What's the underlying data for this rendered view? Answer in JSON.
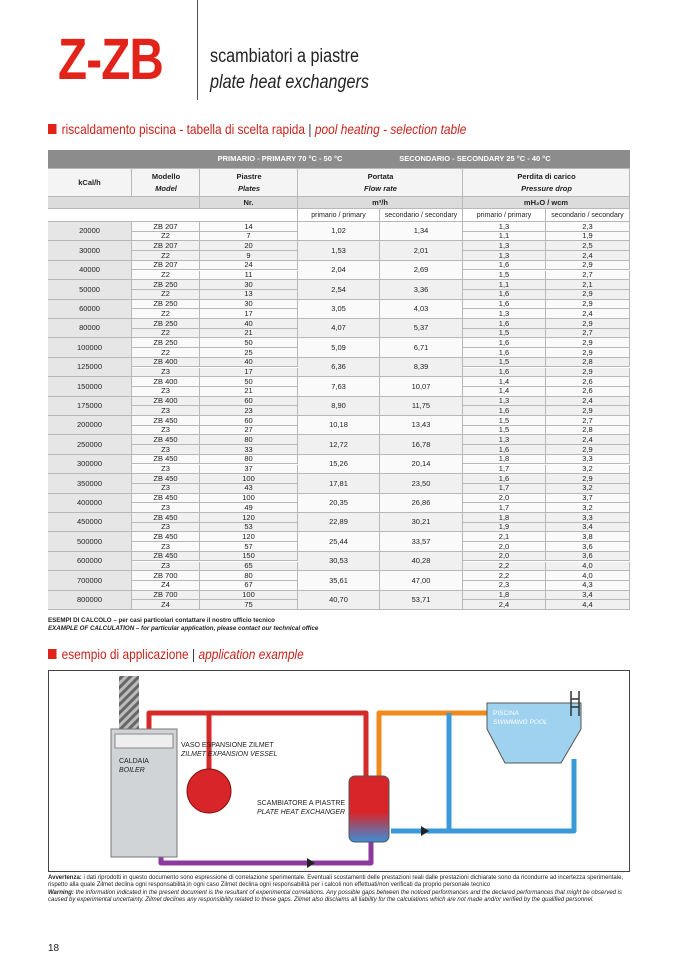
{
  "header": {
    "code": "Z-ZB",
    "title_it": "scambiatori a piastre",
    "title_en": "plate heat exchangers"
  },
  "section_table": {
    "title_it": "riscaldamento piscina - tabella di scelta rapida",
    "separator": "|",
    "title_en": "pool heating - selection table"
  },
  "table": {
    "primary_band": "PRIMARIO - PRIMARY 70 °C - 50 °C",
    "secondary_band": "SECONDARIO - SECONDARY 25 °C - 40 °C",
    "columns": {
      "kcal": "kCal/h",
      "model_it": "Modello",
      "model_en": "Model",
      "plates_it": "Piastre",
      "plates_en": "Plates",
      "flow_it": "Portata",
      "flow_en": "Flow rate",
      "drop_it": "Perdita di carico",
      "drop_en": "Pressure drop"
    },
    "units": {
      "plates": "Nr.",
      "flow": "m³/h",
      "drop": "mH₂O / wcm"
    },
    "subheaders": [
      "primario / primary",
      "secondario / secondary",
      "primario / primary",
      "secondario / secondary"
    ],
    "rows": [
      {
        "kcal": 20000,
        "model": [
          "ZB 207",
          "Z2"
        ],
        "plates": [
          14,
          7
        ],
        "flow_primary": "1,02",
        "flow_secondary": "1,34",
        "drop_primary": [
          "1,3",
          "1,1"
        ],
        "drop_secondary": [
          "2,3",
          "1,9"
        ]
      },
      {
        "kcal": 30000,
        "model": [
          "ZB 207",
          "Z2"
        ],
        "plates": [
          20,
          9
        ],
        "flow_primary": "1,53",
        "flow_secondary": "2,01",
        "drop_primary": [
          "1,3",
          "1,3"
        ],
        "drop_secondary": [
          "2,5",
          "2,4"
        ]
      },
      {
        "kcal": 40000,
        "model": [
          "ZB 207",
          "Z2"
        ],
        "plates": [
          24,
          11
        ],
        "flow_primary": "2,04",
        "flow_secondary": "2,69",
        "drop_primary": [
          "1,6",
          "1,5"
        ],
        "drop_secondary": [
          "2,9",
          "2,7"
        ]
      },
      {
        "kcal": 50000,
        "model": [
          "ZB 250",
          "Z2"
        ],
        "plates": [
          30,
          13
        ],
        "flow_primary": "2,54",
        "flow_secondary": "3,36",
        "drop_primary": [
          "1,1",
          "1,6"
        ],
        "drop_secondary": [
          "2,1",
          "2,9"
        ]
      },
      {
        "kcal": 60000,
        "model": [
          "ZB 250",
          "Z2"
        ],
        "plates": [
          30,
          17
        ],
        "flow_primary": "3,05",
        "flow_secondary": "4,03",
        "drop_primary": [
          "1,6",
          "1,3"
        ],
        "drop_secondary": [
          "2,9",
          "2,4"
        ]
      },
      {
        "kcal": 80000,
        "model": [
          "ZB 250",
          "Z2"
        ],
        "plates": [
          40,
          21
        ],
        "flow_primary": "4,07",
        "flow_secondary": "5,37",
        "drop_primary": [
          "1,6",
          "1,5"
        ],
        "drop_secondary": [
          "2,9",
          "2,7"
        ]
      },
      {
        "kcal": 100000,
        "model": [
          "ZB 250",
          "Z2"
        ],
        "plates": [
          50,
          25
        ],
        "flow_primary": "5,09",
        "flow_secondary": "6,71",
        "drop_primary": [
          "1,6",
          "1,6"
        ],
        "drop_secondary": [
          "2,9",
          "2,9"
        ]
      },
      {
        "kcal": 125000,
        "model": [
          "ZB 400",
          "Z3"
        ],
        "plates": [
          40,
          17
        ],
        "flow_primary": "6,36",
        "flow_secondary": "8,39",
        "drop_primary": [
          "1,5",
          "1,6"
        ],
        "drop_secondary": [
          "2,8",
          "2,9"
        ]
      },
      {
        "kcal": 150000,
        "model": [
          "ZB 400",
          "Z3"
        ],
        "plates": [
          50,
          21
        ],
        "flow_primary": "7,63",
        "flow_secondary": "10,07",
        "drop_primary": [
          "1,4",
          "1,4"
        ],
        "drop_secondary": [
          "2,6",
          "2,6"
        ]
      },
      {
        "kcal": 175000,
        "model": [
          "ZB 400",
          "Z3"
        ],
        "plates": [
          60,
          23
        ],
        "flow_primary": "8,90",
        "flow_secondary": "11,75",
        "drop_primary": [
          "1,3",
          "1,6"
        ],
        "drop_secondary": [
          "2,4",
          "2,9"
        ]
      },
      {
        "kcal": 200000,
        "model": [
          "ZB 450",
          "Z3"
        ],
        "plates": [
          60,
          27
        ],
        "flow_primary": "10,18",
        "flow_secondary": "13,43",
        "drop_primary": [
          "1,5",
          "1,5"
        ],
        "drop_secondary": [
          "2,7",
          "2,8"
        ]
      },
      {
        "kcal": 250000,
        "model": [
          "ZB 450",
          "Z3"
        ],
        "plates": [
          80,
          33
        ],
        "flow_primary": "12,72",
        "flow_secondary": "16,78",
        "drop_primary": [
          "1,3",
          "1,6"
        ],
        "drop_secondary": [
          "2,4",
          "2,9"
        ]
      },
      {
        "kcal": 300000,
        "model": [
          "ZB 450",
          "Z3"
        ],
        "plates": [
          80,
          37
        ],
        "flow_primary": "15,26",
        "flow_secondary": "20,14",
        "drop_primary": [
          "1,8",
          "1,7"
        ],
        "drop_secondary": [
          "3,3",
          "3,2"
        ]
      },
      {
        "kcal": 350000,
        "model": [
          "ZB 450",
          "Z3"
        ],
        "plates": [
          100,
          43
        ],
        "flow_primary": "17,81",
        "flow_secondary": "23,50",
        "drop_primary": [
          "1,6",
          "1,7"
        ],
        "drop_secondary": [
          "2,9",
          "3,2"
        ]
      },
      {
        "kcal": 400000,
        "model": [
          "ZB 450",
          "Z3"
        ],
        "plates": [
          100,
          49
        ],
        "flow_primary": "20,35",
        "flow_secondary": "26,86",
        "drop_primary": [
          "2,0",
          "1,7"
        ],
        "drop_secondary": [
          "3,7",
          "3,2"
        ]
      },
      {
        "kcal": 450000,
        "model": [
          "ZB 450",
          "Z3"
        ],
        "plates": [
          120,
          53
        ],
        "flow_primary": "22,89",
        "flow_secondary": "30,21",
        "drop_primary": [
          "1,8",
          "1,9"
        ],
        "drop_secondary": [
          "3,3",
          "3,4"
        ]
      },
      {
        "kcal": 500000,
        "model": [
          "ZB 450",
          "Z3"
        ],
        "plates": [
          120,
          57
        ],
        "flow_primary": "25,44",
        "flow_secondary": "33,57",
        "drop_primary": [
          "2,1",
          "2,0"
        ],
        "drop_secondary": [
          "3,8",
          "3,6"
        ]
      },
      {
        "kcal": 600000,
        "model": [
          "ZB 450",
          "Z3"
        ],
        "plates": [
          150,
          65
        ],
        "flow_primary": "30,53",
        "flow_secondary": "40,28",
        "drop_primary": [
          "2,0",
          "2,2"
        ],
        "drop_secondary": [
          "3,6",
          "4,0"
        ]
      },
      {
        "kcal": 700000,
        "model": [
          "ZB 700",
          "Z4"
        ],
        "plates": [
          80,
          67
        ],
        "flow_primary": "35,61",
        "flow_secondary": "47,00",
        "drop_primary": [
          "2,2",
          "2,3"
        ],
        "drop_secondary": [
          "4,0",
          "4,3"
        ]
      },
      {
        "kcal": 800000,
        "model": [
          "ZB 700",
          "Z4"
        ],
        "plates": [
          100,
          75
        ],
        "flow_primary": "40,70",
        "flow_secondary": "53,71",
        "drop_primary": [
          "1,8",
          "2,4"
        ],
        "drop_secondary": [
          "3,4",
          "4,4"
        ]
      }
    ]
  },
  "notes": {
    "it": "ESEMPI DI CALCOLO – per casi particolari contattare il nostro ufficio tecnico",
    "en": "EXAMPLE OF CALCULATION – for particular application, please contact our technical office"
  },
  "section_example": {
    "title_it": "esempio di applicazione",
    "separator": "|",
    "title_en": "application example"
  },
  "diagram": {
    "vessel_it": "VASO ESPANSIONE ZILMET",
    "vessel_en": "ZILMET EXPANSION VESSEL",
    "boiler_it": "CALDAIA",
    "boiler_en": "BOILER",
    "exchanger_it": "SCAMBIATORE A PIASTRE",
    "exchanger_en": "PLATE HEAT EXCHANGER",
    "pool_it": "PISCINA",
    "pool_en": "SWIMMING POOL"
  },
  "footer": {
    "warning_it_label": "Avvertenza:",
    "warning_it": "i dati riprodotti in questo documento sono espressione di correlazione sperimentale. Eventuali scostamenti delle prestazioni reali dalle prestazioni dichiarate sono da ricondurre ad incertezza sperimentale, rispetto alla quale Zilmet declina ogni responsabilità;in ogni caso Zilmet declina ogni responsabilità per i calcoli non effettuati/non verificati da proprio personale tecnico",
    "warning_en_label": "Warning:",
    "warning_en": "the information indicated in the present document is the resultant of experimental correlations. Any possible gaps between the noticed performances and the declared performances that might be observed is caused by experimental uncertainty. Zilmet declines any responsibility related to these gaps. Zilmet also disclaims all liability for the calculations which are not made and/or verified by the qualified personnel.",
    "page": "18"
  }
}
